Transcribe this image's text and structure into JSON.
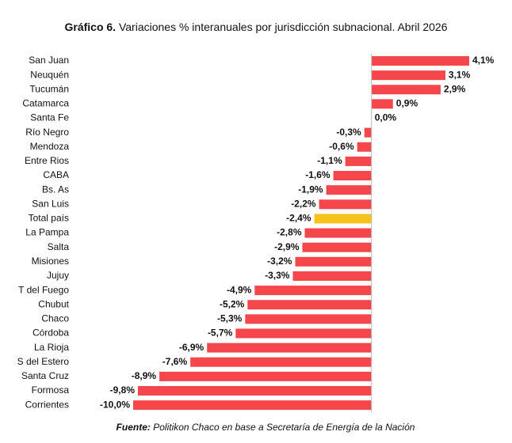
{
  "chart_data": {
    "type": "hbar",
    "title_prefix": "Gráfico 6.",
    "title": "Variaciones % interanuales por jurisdicción subnacional. Abril 2026",
    "source_prefix": "Fuente:",
    "source": "Politikon Chaco en base a Secretaría de Energía de la Nación",
    "categories": [
      "San Juan",
      "Neuquén",
      "Tucumán",
      "Catamarca",
      "Santa Fe",
      "Río Negro",
      "Mendoza",
      "Entre Rios",
      "CABA",
      "Bs. As",
      "San Luis",
      "Total país",
      "La Pampa",
      "Salta",
      "Misiones",
      "Jujuy",
      "T del Fuego",
      "Chubut",
      "Chaco",
      "Córdoba",
      "La Rioja",
      "S del Estero",
      "Santa Cruz",
      "Formosa",
      "Corrientes"
    ],
    "values": [
      4.1,
      3.1,
      2.9,
      0.9,
      0.0,
      -0.3,
      -0.6,
      -1.1,
      -1.6,
      -1.9,
      -2.2,
      -2.4,
      -2.8,
      -2.9,
      -3.2,
      -3.3,
      -4.9,
      -5.2,
      -5.3,
      -5.7,
      -6.9,
      -7.6,
      -8.9,
      -9.8,
      -10.0
    ],
    "value_labels": [
      "4,1%",
      "3,1%",
      "2,9%",
      "0,9%",
      "0,0%",
      "-0,3%",
      "-0,6%",
      "-1,1%",
      "-1,6%",
      "-1,9%",
      "-2,2%",
      "-2,4%",
      "-2,8%",
      "-2,9%",
      "-3,2%",
      "-3,3%",
      "-4,9%",
      "-5,2%",
      "-5,3%",
      "-5,7%",
      "-6,9%",
      "-7,6%",
      "-8,9%",
      "-9,8%",
      "-10,0%"
    ],
    "colors": [
      "#f5464c",
      "#f5464c",
      "#f5464c",
      "#f5464c",
      "#f5464c",
      "#f5464c",
      "#f5464c",
      "#f5464c",
      "#f5464c",
      "#f5464c",
      "#f5464c",
      "#f7c21a",
      "#f5464c",
      "#f5464c",
      "#f5464c",
      "#f5464c",
      "#f5464c",
      "#f5464c",
      "#f5464c",
      "#f5464c",
      "#f5464c",
      "#f5464c",
      "#f5464c",
      "#f5464c",
      "#f5464c"
    ],
    "xlim": [
      -10,
      4.1
    ]
  }
}
